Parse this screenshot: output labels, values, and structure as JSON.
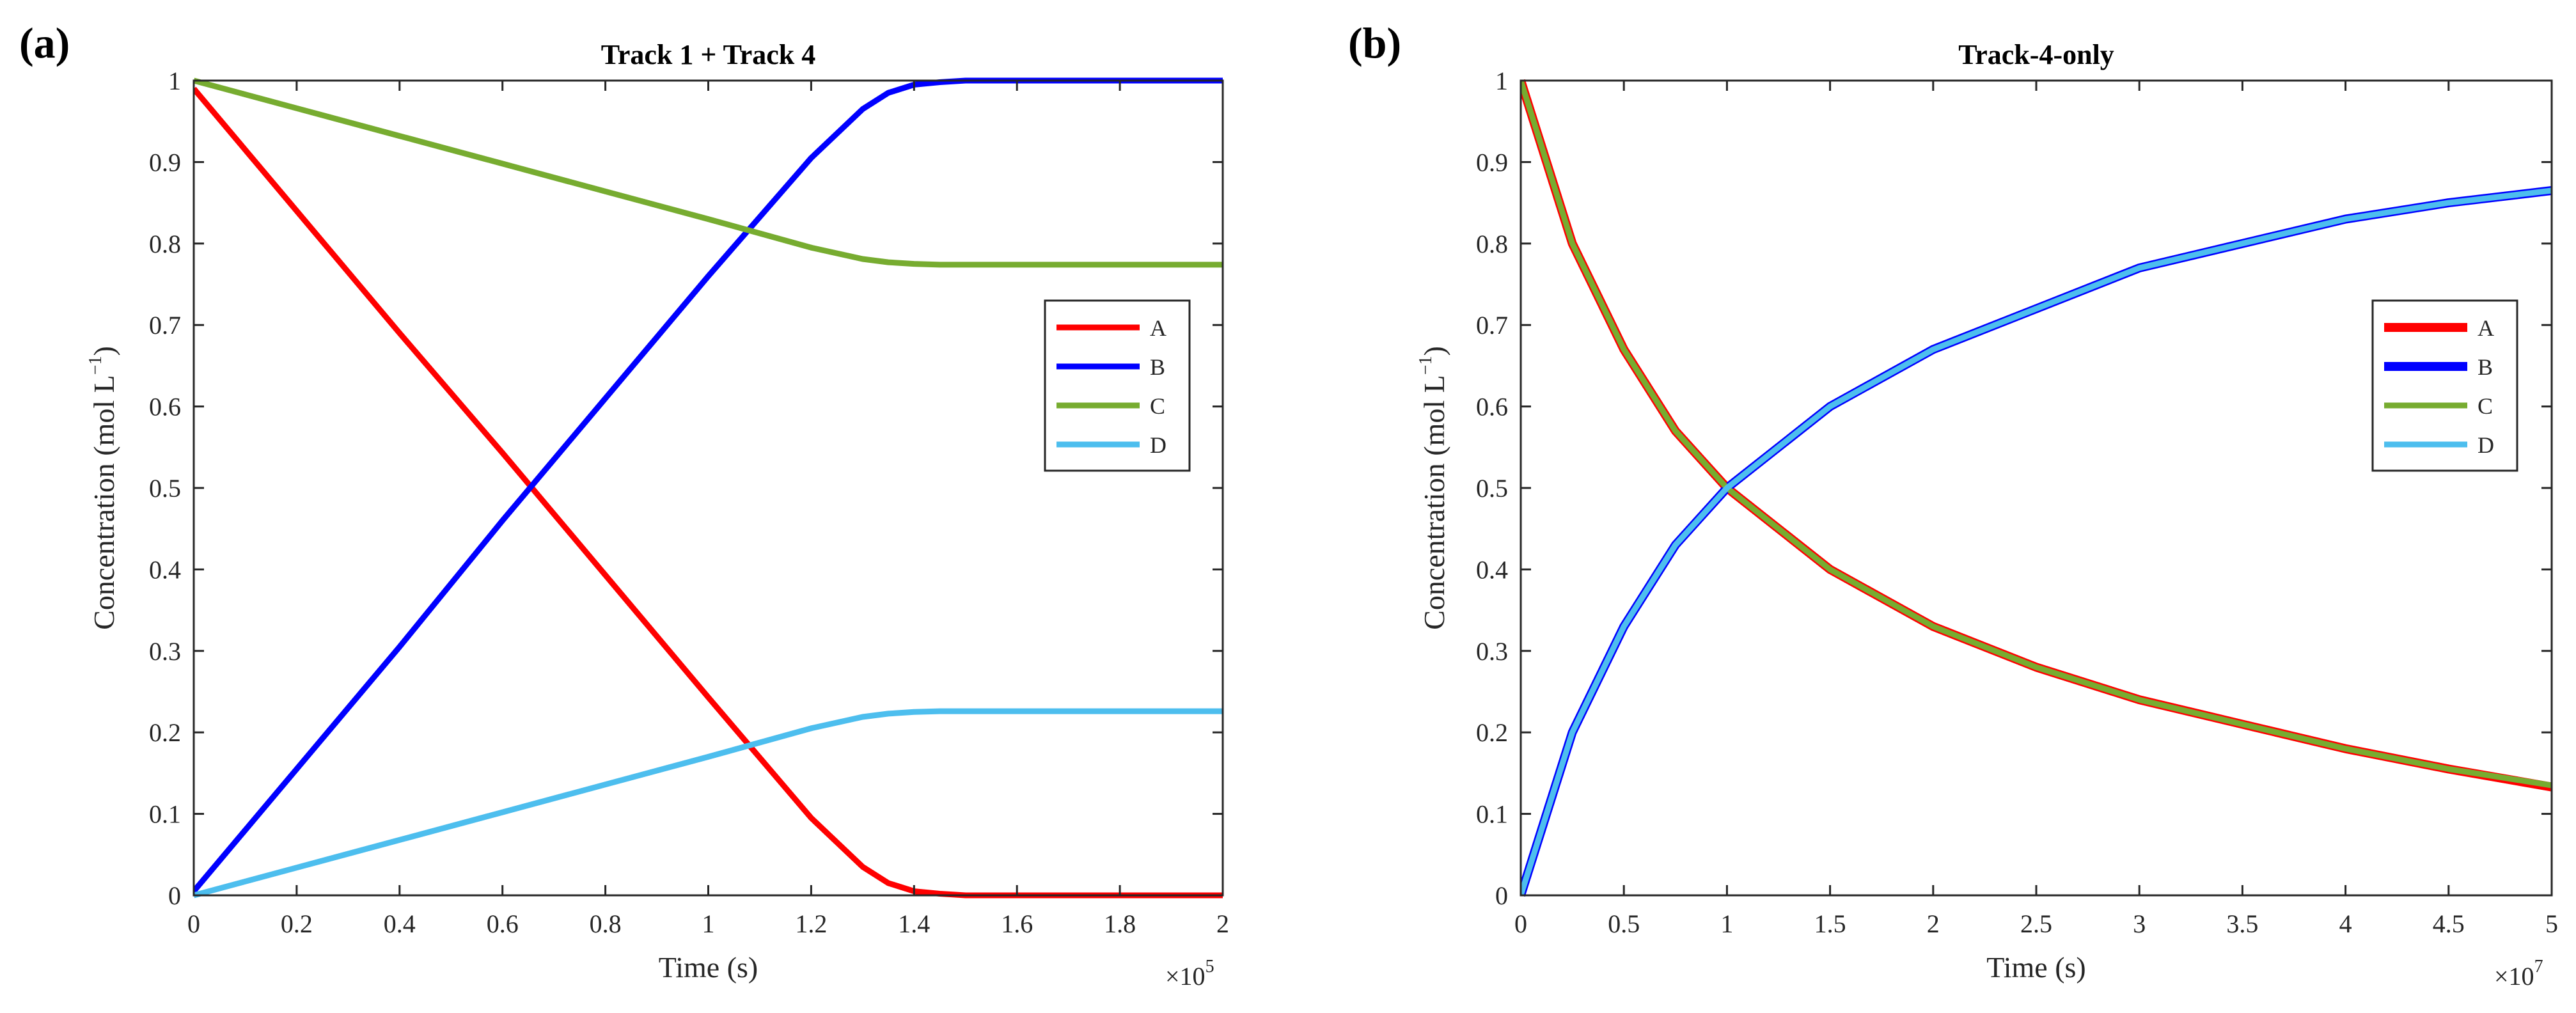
{
  "chart_data": [
    {
      "type": "line",
      "panel_label": "(a)",
      "title": "Track 1 + Track 4",
      "xlabel": "Time (s)",
      "ylabel": "Concentration (mol L",
      "ylabel_exponent": "−1",
      "ylabel_suffix": ")",
      "xlim": [
        0,
        2
      ],
      "ylim": [
        0,
        1
      ],
      "x_multiplier": "×10",
      "x_multiplier_exponent": "5",
      "x_ticks": [
        0,
        0.2,
        0.4,
        0.6,
        0.8,
        1,
        1.2,
        1.4,
        1.6,
        1.8,
        2
      ],
      "x_tick_labels": [
        "0",
        "0.2",
        "0.4",
        "0.6",
        "0.8",
        "1",
        "1.2",
        "1.4",
        "1.6",
        "1.8",
        "2"
      ],
      "y_ticks": [
        0,
        0.1,
        0.2,
        0.3,
        0.4,
        0.5,
        0.6,
        0.7,
        0.8,
        0.9,
        1
      ],
      "y_tick_labels": [
        "0",
        "0.1",
        "0.2",
        "0.3",
        "0.4",
        "0.5",
        "0.6",
        "0.7",
        "0.8",
        "0.9",
        "1"
      ],
      "grid": false,
      "legend_position": "right-middle",
      "series": [
        {
          "name": "A",
          "color": "#ff0000",
          "x": [
            0,
            0.2,
            0.4,
            0.6,
            0.8,
            1.0,
            1.2,
            1.3,
            1.35,
            1.4,
            1.45,
            1.5,
            1.6,
            2.0
          ],
          "y": [
            0.99,
            0.84,
            0.69,
            0.543,
            0.393,
            0.243,
            0.095,
            0.035,
            0.015,
            0.005,
            0.002,
            0.0,
            0.0,
            0.0
          ]
        },
        {
          "name": "B",
          "color": "#0000ff",
          "x": [
            0,
            0.2,
            0.4,
            0.6,
            0.8,
            1.0,
            1.2,
            1.3,
            1.35,
            1.4,
            1.45,
            1.5,
            1.6,
            2.0
          ],
          "y": [
            0.005,
            0.155,
            0.305,
            0.46,
            0.61,
            0.76,
            0.905,
            0.965,
            0.985,
            0.995,
            0.998,
            1.0,
            1.0,
            1.0
          ]
        },
        {
          "name": "C",
          "color": "#77ac30",
          "x": [
            0,
            0.2,
            0.4,
            0.6,
            0.8,
            1.0,
            1.2,
            1.3,
            1.35,
            1.4,
            1.45,
            1.5,
            1.6,
            2.0
          ],
          "y": [
            1.0,
            0.966,
            0.932,
            0.898,
            0.864,
            0.83,
            0.795,
            0.781,
            0.777,
            0.775,
            0.774,
            0.774,
            0.774,
            0.774
          ]
        },
        {
          "name": "D",
          "color": "#4dbeee",
          "x": [
            0,
            0.2,
            0.4,
            0.6,
            0.8,
            1.0,
            1.2,
            1.3,
            1.35,
            1.4,
            1.45,
            1.5,
            1.6,
            2.0
          ],
          "y": [
            0.0,
            0.034,
            0.068,
            0.102,
            0.136,
            0.17,
            0.205,
            0.219,
            0.223,
            0.225,
            0.226,
            0.226,
            0.226,
            0.226
          ]
        }
      ]
    },
    {
      "type": "line",
      "panel_label": "(b)",
      "title": "Track-4-only",
      "xlabel": "Time (s)",
      "ylabel": "Concentration (mol L",
      "ylabel_exponent": "−1",
      "ylabel_suffix": ")",
      "xlim": [
        0,
        5
      ],
      "ylim": [
        0,
        1
      ],
      "x_multiplier": "×10",
      "x_multiplier_exponent": "7",
      "x_ticks": [
        0,
        0.5,
        1,
        1.5,
        2,
        2.5,
        3,
        3.5,
        4,
        4.5,
        5
      ],
      "x_tick_labels": [
        "0",
        "0.5",
        "1",
        "1.5",
        "2",
        "2.5",
        "3",
        "3.5",
        "4",
        "4.5",
        "5"
      ],
      "y_ticks": [
        0,
        0.1,
        0.2,
        0.3,
        0.4,
        0.5,
        0.6,
        0.7,
        0.8,
        0.9,
        1
      ],
      "y_tick_labels": [
        "0",
        "0.1",
        "0.2",
        "0.3",
        "0.4",
        "0.5",
        "0.6",
        "0.7",
        "0.8",
        "0.9",
        "1"
      ],
      "grid": false,
      "legend_position": "right-middle",
      "series": [
        {
          "name": "A",
          "color": "#ff0000",
          "x": [
            0,
            0.25,
            0.5,
            0.75,
            1.0,
            1.5,
            2.0,
            2.5,
            3.0,
            3.5,
            4.0,
            4.5,
            5.0
          ],
          "y": [
            1.0,
            0.8,
            0.67,
            0.57,
            0.5,
            0.4,
            0.33,
            0.28,
            0.24,
            0.21,
            0.18,
            0.155,
            0.133
          ]
        },
        {
          "name": "B",
          "color": "#0000ff",
          "x": [
            0,
            0.25,
            0.5,
            0.75,
            1.0,
            1.5,
            2.0,
            2.5,
            3.0,
            3.5,
            4.0,
            4.5,
            5.0
          ],
          "y": [
            0.0,
            0.2,
            0.33,
            0.43,
            0.5,
            0.6,
            0.67,
            0.72,
            0.77,
            0.8,
            0.83,
            0.85,
            0.865
          ]
        },
        {
          "name": "C",
          "color": "#77ac30",
          "x": [
            0,
            0.25,
            0.5,
            0.75,
            1.0,
            1.5,
            2.0,
            2.5,
            3.0,
            3.5,
            4.0,
            4.5,
            5.0
          ],
          "y": [
            1.0,
            0.8,
            0.67,
            0.57,
            0.5,
            0.4,
            0.33,
            0.28,
            0.24,
            0.21,
            0.18,
            0.155,
            0.135
          ]
        },
        {
          "name": "D",
          "color": "#4dbeee",
          "x": [
            0,
            0.25,
            0.5,
            0.75,
            1.0,
            1.5,
            2.0,
            2.5,
            3.0,
            3.5,
            4.0,
            4.5,
            5.0
          ],
          "y": [
            0.0,
            0.2,
            0.33,
            0.43,
            0.5,
            0.6,
            0.67,
            0.72,
            0.77,
            0.8,
            0.83,
            0.85,
            0.865
          ]
        }
      ]
    }
  ]
}
